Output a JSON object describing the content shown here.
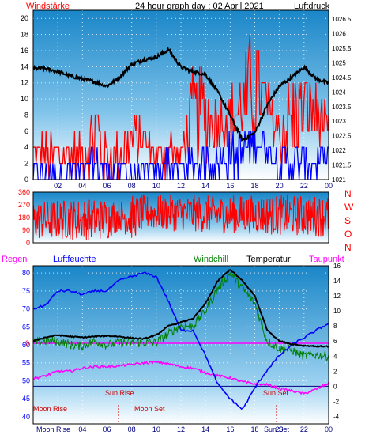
{
  "header": {
    "left_label": "Windstärke",
    "center_title": "24 hour graph day : 02 April 2021",
    "right_label": "Luftdruck"
  },
  "panel3_header": {
    "rain": "Regen",
    "humidity": "Luftfeuchte",
    "windchill": "Windchill",
    "temperature": "Temperatur",
    "dewpoint": "Taupunkt"
  },
  "colors": {
    "wind_speed": "#ff0000",
    "wind_gust": "#0000ff",
    "pressure": "#000000",
    "direction": "#ff0000",
    "humidity": "#0000ff",
    "windchill": "#008000",
    "temperature": "#000000",
    "dewpoint": "#ff00ff",
    "sky_top": "#1a86c8",
    "sky_bottom": "#ffffff"
  },
  "chart_data": [
    {
      "type": "line",
      "name": "wind-pressure",
      "x_ticks": [
        "02",
        "04",
        "06",
        "08",
        "10",
        "12",
        "14",
        "16",
        "18",
        "20",
        "22",
        "00"
      ],
      "left_axis": {
        "label": "Windstärke",
        "ticks": [
          0,
          2,
          4,
          6,
          8,
          10,
          12,
          14,
          16,
          18,
          20
        ],
        "ylim": [
          0,
          21
        ]
      },
      "right_axis": {
        "label": "Luftdruck",
        "ticks": [
          "1021",
          "1021.5",
          "1022",
          "1022.5",
          "1023",
          "1023.5",
          "1024",
          "1024.5",
          "1025",
          "1025.5",
          "1026",
          "1026.5"
        ],
        "ylim": [
          1021,
          1026.8
        ]
      },
      "pressure_series": {
        "x": [
          0,
          1,
          2,
          3,
          4,
          5,
          6,
          7,
          8,
          9,
          10,
          11,
          12,
          13,
          14,
          15,
          16,
          17,
          18,
          19,
          20,
          21,
          22,
          23,
          24
        ],
        "y": [
          1024.8,
          1024.8,
          1024.7,
          1024.55,
          1024.45,
          1024.35,
          1024.2,
          1024.5,
          1024.95,
          1025.1,
          1025.2,
          1025.45,
          1024.85,
          1024.7,
          1024.6,
          1024.0,
          1023.2,
          1022.35,
          1022.6,
          1023.55,
          1024.2,
          1024.5,
          1024.85,
          1024.45,
          1024.3
        ]
      },
      "wind_speed_envelope": {
        "x": [
          0,
          1,
          2,
          3,
          4,
          5,
          6,
          7,
          8,
          9,
          10,
          11,
          12,
          13,
          14,
          15,
          16,
          17,
          18,
          19,
          20,
          21,
          22,
          23,
          24
        ],
        "max": [
          6,
          6,
          6,
          6,
          6,
          12,
          6,
          6,
          8,
          8,
          4,
          8,
          4,
          14,
          14,
          10,
          12,
          14,
          20,
          12,
          10,
          14,
          14,
          12,
          8
        ],
        "min": [
          2,
          0,
          0,
          0,
          0,
          0,
          0,
          0,
          2,
          2,
          2,
          0,
          2,
          2,
          2,
          4,
          4,
          4,
          4,
          6,
          2,
          0,
          4,
          4,
          4
        ]
      },
      "wind_gust_envelope": {
        "x": [
          0,
          1,
          2,
          3,
          4,
          5,
          6,
          7,
          8,
          9,
          10,
          11,
          12,
          13,
          14,
          15,
          16,
          17,
          18,
          19,
          20,
          21,
          22,
          23,
          24
        ],
        "max": [
          2,
          2,
          2,
          2,
          2,
          4,
          2,
          2,
          2,
          2,
          2,
          4,
          2,
          4,
          4,
          4,
          6,
          6,
          8,
          6,
          4,
          4,
          4,
          4,
          4
        ],
        "min": [
          0,
          0,
          0,
          0,
          0,
          0,
          0,
          0,
          0,
          0,
          0,
          0,
          0,
          0,
          0,
          0,
          0,
          0,
          2,
          2,
          0,
          0,
          0,
          0,
          2
        ]
      }
    },
    {
      "type": "line",
      "name": "wind-direction",
      "right_labels": [
        "N",
        "W",
        "S",
        "O",
        "N"
      ],
      "left_axis": {
        "ticks": [
          0,
          90,
          180,
          270,
          360
        ],
        "ylim": [
          0,
          360
        ]
      },
      "direction_band": {
        "x": [
          0,
          6,
          7,
          8,
          9,
          24
        ],
        "low": [
          20,
          20,
          90,
          20,
          90,
          40
        ],
        "high": [
          300,
          320,
          300,
          340,
          340,
          340
        ]
      }
    },
    {
      "type": "line",
      "name": "humidity-temperature",
      "left_axis": {
        "label": "Luftfeuchte",
        "ticks": [
          40,
          45,
          50,
          55,
          60,
          65,
          70,
          75,
          80
        ],
        "ylim": [
          38,
          82
        ]
      },
      "right_axis": {
        "label": "Temperatur",
        "ticks": [
          -4,
          -2,
          0,
          2,
          4,
          6,
          8,
          10,
          12,
          14,
          16
        ],
        "ylim": [
          -5,
          16
        ]
      },
      "rain_marker": "0",
      "humidity": {
        "x": [
          0,
          1,
          2,
          3,
          4,
          5,
          6,
          7,
          8,
          9,
          10,
          11,
          12,
          13,
          14,
          15,
          16,
          17,
          18,
          19,
          20,
          21,
          22,
          23,
          24
        ],
        "y": [
          70,
          71,
          75,
          75,
          74,
          75,
          75,
          78,
          79,
          80,
          79,
          72,
          64,
          64,
          57,
          49,
          45,
          42,
          48,
          53,
          57,
          60,
          62,
          64,
          66
        ]
      },
      "temperature": {
        "x": [
          0,
          1,
          2,
          3,
          4,
          5,
          6,
          7,
          8,
          9,
          10,
          11,
          12,
          13,
          14,
          15,
          16,
          17,
          18,
          19,
          20,
          21,
          22,
          23,
          24
        ],
        "y": [
          6.0,
          6.5,
          6.8,
          6.6,
          6.5,
          6.6,
          6.7,
          6.6,
          6.4,
          6.3,
          6.8,
          8.0,
          8.5,
          9.0,
          11.0,
          14.0,
          15.5,
          14.0,
          12.0,
          7.5,
          6.0,
          5.6,
          5.4,
          5.3,
          5.3
        ]
      },
      "windchill": {
        "x": [
          0,
          1,
          2,
          3,
          4,
          5,
          6,
          7,
          8,
          9,
          10,
          11,
          12,
          13,
          14,
          15,
          16,
          17,
          18,
          19,
          20,
          21,
          22,
          23,
          24
        ],
        "y": [
          5.8,
          6.0,
          6.0,
          5.5,
          5.3,
          6.0,
          5.5,
          5.8,
          5.8,
          5.8,
          5.8,
          7.0,
          8.0,
          8.0,
          10.0,
          13.0,
          15.0,
          13.0,
          11.0,
          6.0,
          5.0,
          4.8,
          4.0,
          4.2,
          4.0
        ]
      },
      "dewpoint": {
        "x": [
          0,
          1,
          2,
          3,
          4,
          5,
          6,
          7,
          8,
          9,
          10,
          11,
          12,
          13,
          14,
          15,
          16,
          17,
          18,
          19,
          20,
          21,
          22,
          23,
          24
        ],
        "y": [
          1.0,
          1.4,
          2.0,
          2.0,
          2.4,
          2.6,
          2.6,
          2.7,
          2.9,
          3.1,
          3.2,
          3.0,
          2.6,
          2.4,
          1.8,
          1.4,
          1.1,
          0.6,
          0.3,
          0.2,
          -0.3,
          -0.6,
          -1.0,
          -0.4,
          0.4
        ]
      },
      "annotations": {
        "sun_rise": "Sun Rise",
        "sun_set": "Sun Set",
        "moon_rise": "Moon Rise",
        "moon_set": "Moon Set",
        "bottom_labels": [
          "Moon Rise",
          "Sun Rise",
          "Sun Set"
        ]
      },
      "x_ticks": [
        "04",
        "06",
        "08",
        "10",
        "12",
        "14",
        "16",
        "18",
        "20",
        "22",
        "00"
      ]
    }
  ]
}
